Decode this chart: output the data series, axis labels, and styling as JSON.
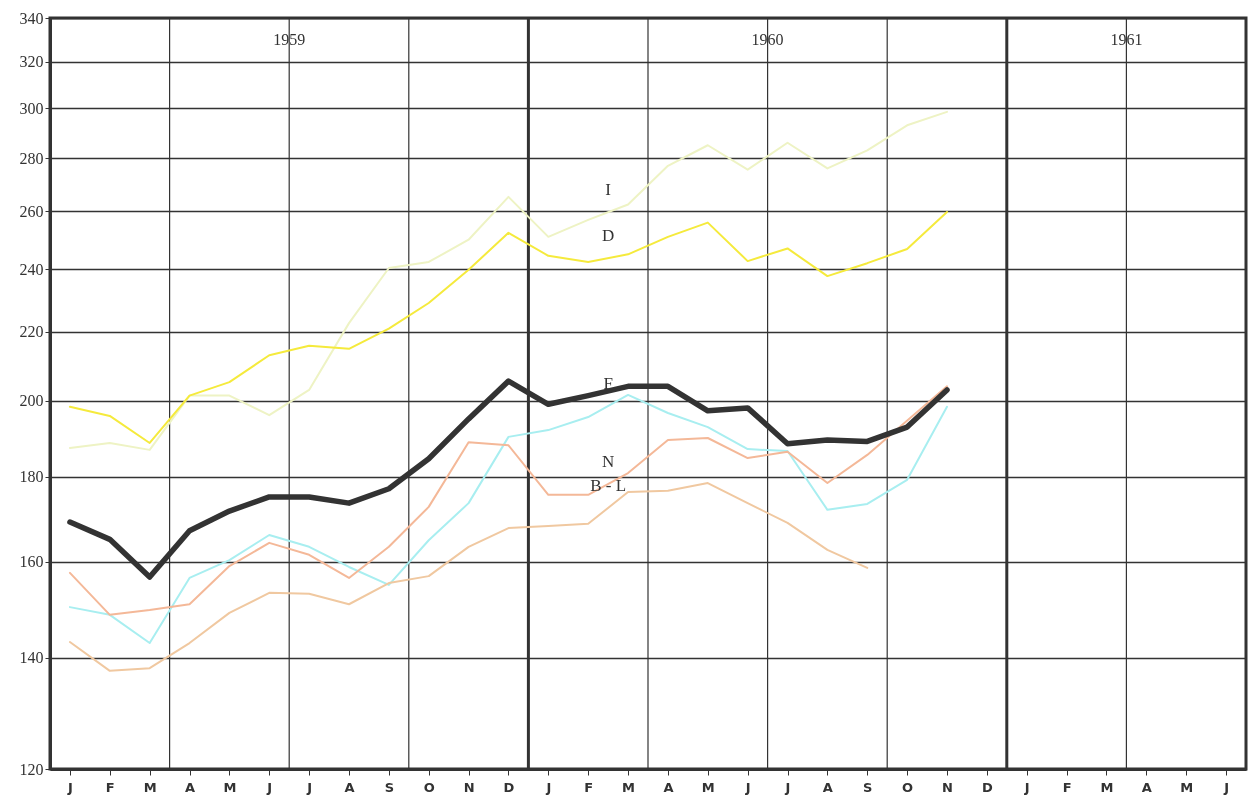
{
  "chart_data": {
    "type": "line",
    "categories": [
      "J",
      "F",
      "M",
      "A",
      "M",
      "J",
      "J",
      "A",
      "S",
      "O",
      "N",
      "D",
      "J",
      "F",
      "M",
      "A",
      "M",
      "J",
      "J",
      "A",
      "S",
      "O",
      "N",
      "D",
      "J",
      "F",
      "M",
      "A",
      "M",
      "J"
    ],
    "series": [
      {
        "name": "I",
        "color": "#eef3c4",
        "values": [
          187.3,
          188.6,
          186.8,
          201.4,
          201.4,
          196,
          203,
          222.7,
          240.4,
          242.4,
          250,
          265.3,
          251,
          257,
          262.5,
          277,
          285,
          275.5,
          286,
          276,
          283,
          293,
          298.5,
          null,
          null,
          null,
          null,
          null,
          null,
          null
        ]
      },
      {
        "name": "D",
        "color": "#f5ea3c",
        "values": [
          198.3,
          195.8,
          188.6,
          201.4,
          205.2,
          213,
          215.8,
          214.9,
          221,
          229,
          239.8,
          252.4,
          244.5,
          242.4,
          245,
          251,
          256,
          242.7,
          247,
          237.7,
          242,
          246.8,
          259.8,
          null,
          null,
          null,
          null,
          null,
          null,
          null
        ]
      },
      {
        "name": "F",
        "color": "#a8eef0",
        "values": [
          150.2,
          148.6,
          142.9,
          156.4,
          160.3,
          166,
          163.3,
          158.8,
          154.9,
          164.8,
          173.5,
          190.2,
          192,
          195.5,
          201.6,
          196.6,
          192.8,
          187,
          186.5,
          171.9,
          173.3,
          179.2,
          198.3,
          null,
          null,
          null,
          null,
          null,
          null,
          null
        ]
      },
      {
        "name": "N",
        "color": "#f4b898",
        "values": [
          157.5,
          148.6,
          149.6,
          150.8,
          159,
          164.2,
          161.5,
          156.4,
          163.3,
          172.6,
          188.8,
          188,
          175.5,
          175.5,
          180.9,
          189.4,
          189.9,
          184.7,
          186.3,
          178.4,
          185.5,
          null,
          204,
          null,
          null,
          null,
          null,
          null,
          null,
          null
        ]
      },
      {
        "name": "B - L",
        "color": "#f0c8a0",
        "values": [
          143.1,
          137.5,
          138,
          142.9,
          149,
          153.2,
          153,
          150.8,
          155.3,
          156.8,
          163.3,
          167.6,
          168.1,
          168.6,
          176.2,
          176.5,
          178.4,
          173.5,
          168.8,
          162.6,
          158.6,
          null,
          null,
          null,
          null,
          null,
          null,
          null,
          null,
          null
        ]
      },
      {
        "color": "#333333",
        "values": [
          169,
          165,
          156.6,
          167,
          171.6,
          175,
          175,
          173.5,
          177,
          184.5,
          195,
          205.5,
          199,
          201.4,
          204,
          204,
          197.2,
          198,
          188.4,
          189.4,
          189,
          192.8,
          203,
          null,
          null,
          null,
          null,
          null,
          null,
          null
        ]
      }
    ],
    "ylim": [
      120,
      340
    ],
    "yticks": [
      120,
      140,
      160,
      180,
      200,
      220,
      240,
      260,
      280,
      300,
      320,
      340
    ],
    "log": "y",
    "grid": true,
    "annotations": [
      "1959",
      "1960",
      "1961"
    ]
  }
}
